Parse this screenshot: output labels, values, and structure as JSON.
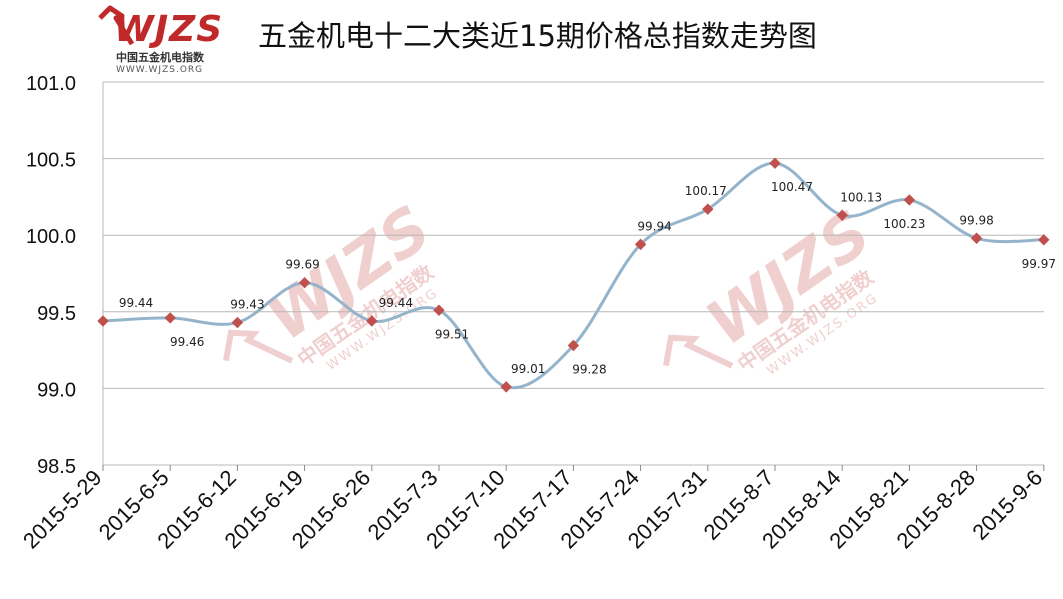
{
  "logo": {
    "wordmark": "WJZS",
    "chinese_name": "中国五金机电指数",
    "url": "WWW.WJZS.ORG"
  },
  "watermark": {
    "wordmark": "WJZS",
    "chinese_name": "中国五金机电指数",
    "url": "WWW.WJZS.ORG"
  },
  "colors": {
    "line": "#94b4cc",
    "marker": "#c0504d",
    "grid": "#b8b8b8",
    "brand_red": "#c0292a"
  },
  "chart_data": {
    "type": "line",
    "title": "五金机电十二大类近15期价格总指数走势图",
    "categories": [
      "2015-5-29",
      "2015-6-5",
      "2015-6-12",
      "2015-6-19",
      "2015-6-26",
      "2015-7-3",
      "2015-7-10",
      "2015-7-17",
      "2015-7-24",
      "2015-7-31",
      "2015-8-7",
      "2015-8-14",
      "2015-8-21",
      "2015-8-28",
      "2015-9-6"
    ],
    "values": [
      99.44,
      99.46,
      99.43,
      99.69,
      99.44,
      99.51,
      99.01,
      99.28,
      99.94,
      100.17,
      100.47,
      100.13,
      100.23,
      99.98,
      99.97
    ],
    "data_labels": [
      "99.44",
      "99.46",
      "99.43",
      "99.69",
      "99.44",
      "99.51",
      "99.01",
      "99.28",
      "99.94",
      "100.17",
      "100.47",
      "100.13",
      "100.23",
      "99.98",
      "99.97"
    ],
    "y_ticks": [
      "98.5",
      "99.0",
      "99.5",
      "100.0",
      "100.5",
      "101.0"
    ],
    "ylim": [
      98.5,
      101.0
    ],
    "xlabel": "",
    "ylabel": "",
    "smooth": true,
    "grid": "horizontal",
    "legend": "none"
  }
}
